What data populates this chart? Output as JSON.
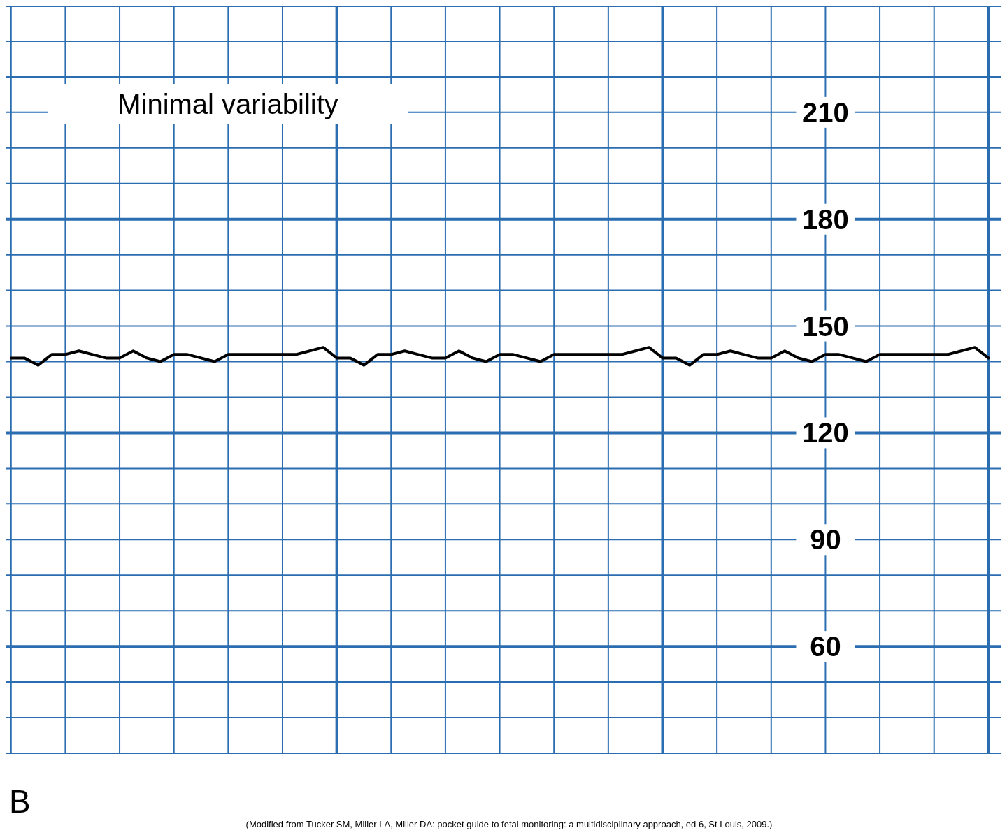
{
  "chart_data": {
    "type": "line",
    "title": "Minimal variability",
    "categories": [
      null,
      null,
      null,
      null,
      null,
      null,
      null,
      null,
      null,
      null,
      null,
      null,
      null,
      null,
      null,
      null,
      null,
      null,
      null,
      null,
      null,
      null,
      null,
      null,
      null,
      null,
      null,
      null,
      null,
      null,
      null,
      null,
      null,
      null,
      null,
      null,
      null,
      null,
      null,
      null,
      null,
      null,
      null,
      null,
      null,
      null,
      null,
      null,
      null,
      null,
      null,
      null,
      null,
      null,
      null,
      null,
      null,
      null,
      null,
      null,
      null,
      null,
      null,
      null,
      null,
      null,
      null,
      null,
      null,
      null,
      null,
      null,
      null
    ],
    "series": [
      {
        "color": "#000000",
        "values": [
          141,
          141,
          139,
          142,
          142,
          143,
          142,
          141,
          141,
          143,
          141,
          140,
          142,
          142,
          141,
          140,
          142,
          142,
          142,
          142,
          142,
          142,
          143,
          144,
          141,
          141,
          139,
          142,
          142,
          143,
          142,
          141,
          141,
          143,
          141,
          140,
          142,
          142,
          141,
          140,
          142,
          142,
          142,
          142,
          142,
          142,
          143,
          144,
          141,
          141,
          139,
          142,
          142,
          143,
          142,
          141,
          141,
          143,
          141,
          140,
          142,
          142,
          141,
          140,
          142,
          142,
          142,
          142,
          142,
          142,
          143,
          144,
          141
        ]
      }
    ],
    "ylim": [
      30,
      240
    ],
    "yticks": [
      {
        "value": 30,
        "label": null
      },
      {
        "value": 40,
        "label": null
      },
      {
        "value": 50,
        "label": null
      },
      60,
      {
        "value": 70,
        "label": null
      },
      {
        "value": 80,
        "label": null
      },
      90,
      {
        "value": 100,
        "label": null
      },
      {
        "value": 110,
        "label": null
      },
      120,
      {
        "value": 130,
        "label": null
      },
      {
        "value": 140,
        "label": null
      },
      150,
      {
        "value": 160,
        "label": null
      },
      {
        "value": 170,
        "label": null
      },
      180,
      {
        "value": 190,
        "label": null
      },
      {
        "value": 200,
        "label": null
      },
      210,
      {
        "value": 220,
        "label": null
      },
      {
        "value": 230,
        "label": null
      },
      {
        "value": 240,
        "label": null
      }
    ],
    "grid": true,
    "tick_labels": "y",
    "annotations": [
      "B",
      "(Modified from Tucker SM, Miller LA, Miller DA: pocket guide to fetal monitoring: a multidisciplinary approach, ed 6, St Louis, 2009.)"
    ]
  }
}
